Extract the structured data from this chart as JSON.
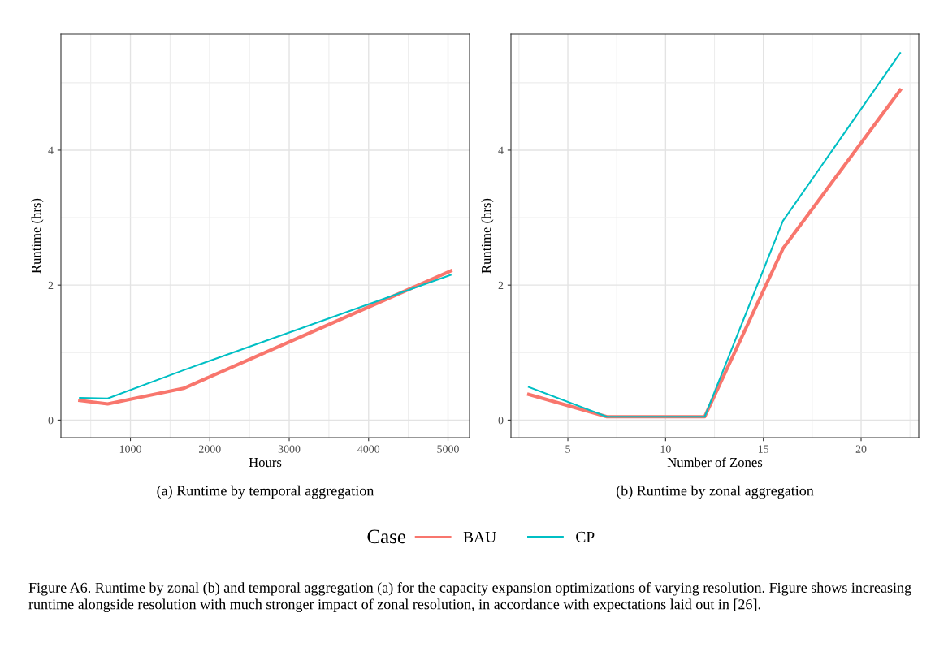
{
  "chart_data": [
    {
      "type": "line",
      "xlabel": "Hours",
      "ylabel": "Runtime (hrs)",
      "xlim": [
        125,
        5271
      ],
      "ylim": [
        -0.26,
        5.72
      ],
      "xticks": [
        {
          "value": 500,
          "label": null
        },
        1000,
        {
          "value": 1500,
          "label": null
        },
        2000,
        {
          "value": 2500,
          "label": null
        },
        3000,
        {
          "value": 3500,
          "label": null
        },
        4000,
        {
          "value": 4500,
          "label": null
        },
        5000
      ],
      "yticks": [
        0,
        {
          "value": 1,
          "label": null
        },
        2,
        {
          "value": 3,
          "label": null
        },
        4,
        {
          "value": 5,
          "label": null
        }
      ],
      "grid": true,
      "legend": "bottom",
      "legend_title": "Case",
      "series": [
        {
          "name": "BAU",
          "color": "#f8766d",
          "x": [
            363,
            714,
            1670,
            5033
          ],
          "values": [
            0.29,
            0.24,
            0.47,
            2.21
          ]
        },
        {
          "name": "CP",
          "color": "#00bfc4",
          "x": [
            363,
            714,
            1670,
            5033
          ],
          "values": [
            0.33,
            0.32,
            0.74,
            2.15
          ]
        }
      ],
      "annotations": [
        "(a) Runtime by temporal aggregation",
        "Figure A6. Runtime by zonal (b) and temporal aggregation (a) for the capacity expansion optimizations of varying resolution. Figure shows increasing runtime alongside resolution with much stronger impact of zonal resolution, in accordance with expectations laid out in [26]."
      ]
    },
    {
      "type": "line",
      "xlabel": "Number of Zones",
      "ylabel": "Runtime (hrs)",
      "xlim": [
        2.09,
        22.95
      ],
      "ylim": [
        -0.26,
        5.72
      ],
      "xticks": [
        {
          "value": 2.5,
          "label": null
        },
        5,
        {
          "value": 7.5,
          "label": null
        },
        10,
        {
          "value": 12.5,
          "label": null
        },
        15,
        {
          "value": 17.5,
          "label": null
        },
        20,
        {
          "value": 22.5,
          "label": null
        }
      ],
      "yticks": [
        0,
        {
          "value": 1,
          "label": null
        },
        2,
        {
          "value": 3,
          "label": null
        },
        4,
        {
          "value": 5,
          "label": null
        }
      ],
      "grid": true,
      "series": [
        {
          "name": "BAU",
          "color": "#f8766d",
          "x": [
            3,
            7,
            12,
            16,
            22
          ],
          "values": [
            0.38,
            0.05,
            0.05,
            2.54,
            4.89
          ]
        },
        {
          "name": "CP",
          "color": "#00bfc4",
          "x": [
            3,
            7,
            12,
            16,
            22
          ],
          "values": [
            0.49,
            0.05,
            0.05,
            2.95,
            5.44
          ]
        }
      ],
      "annotations": [
        "(b) Runtime by zonal aggregation"
      ]
    }
  ]
}
